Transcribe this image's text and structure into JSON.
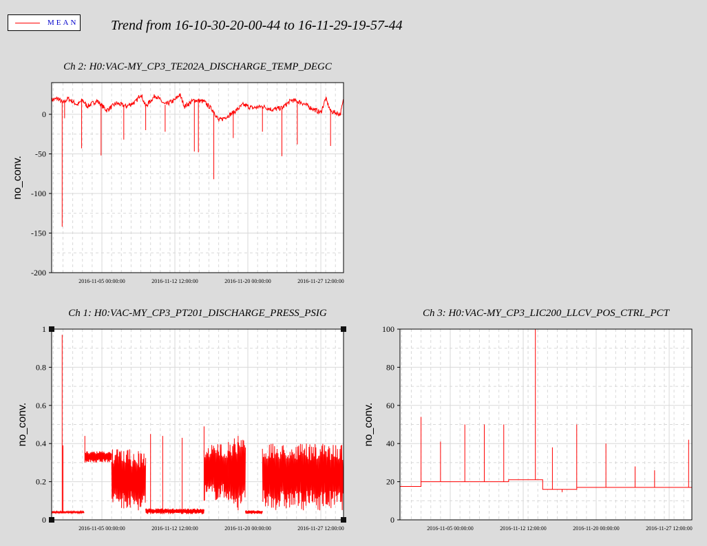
{
  "legend": {
    "label": "MEAN",
    "color": "#ff0000",
    "label_color": "#0000cc"
  },
  "title": "Trend from 16-10-30-20-00-44 to 16-11-29-19-57-44",
  "colors": {
    "background": "#dcdcdc",
    "plot_bg": "#ffffff",
    "grid": "#d8d8d8",
    "series": "#ff0000"
  },
  "chart_data": [
    {
      "id": "ch2",
      "type": "line",
      "title": "Ch 2: H0:VAC-MY_CP3_TE202A_DISCHARGE_TEMP_DEGC",
      "ylabel": "no_conv.",
      "xlabel": "",
      "xlim": [
        "2016-10-30 20:00:44",
        "2016-11-29 19:57:44"
      ],
      "ylim": [
        -200,
        40
      ],
      "yticks": [
        0,
        -50,
        -100,
        -150,
        -200
      ],
      "xticks": [
        "2016-11-05 00:00:00",
        "2016-11-12 12:00:00",
        "2016-11-20 00:00:00",
        "2016-11-27 12:00:00"
      ],
      "grid": true,
      "series": [
        {
          "name": "MEAN",
          "baseline": [
            [
              "2016-10-30 20:00",
              "18"
            ],
            [
              "2016-10-31 12:00",
              "20"
            ],
            [
              "2016-11-01 00:00",
              "14"
            ],
            [
              "2016-11-01 12:00",
              "20"
            ],
            [
              "2016-11-02 12:00",
              "12"
            ],
            [
              "2016-11-03 00:00",
              "18"
            ],
            [
              "2016-11-03 12:00",
              "10"
            ],
            [
              "2016-11-04 12:00",
              "17"
            ],
            [
              "2016-11-05 12:00",
              "5"
            ],
            [
              "2016-11-06 12:00",
              "14"
            ],
            [
              "2016-11-07 12:00",
              "10"
            ],
            [
              "2016-11-08 12:00",
              "16"
            ],
            [
              "2016-11-09 00:00",
              "26"
            ],
            [
              "2016-11-09 12:00",
              "10"
            ],
            [
              "2016-11-10 12:00",
              "24"
            ],
            [
              "2016-11-11 12:00",
              "12"
            ],
            [
              "2016-11-12 12:00",
              "18"
            ],
            [
              "2016-11-13 00:00",
              "25"
            ],
            [
              "2016-11-13 12:00",
              "10"
            ],
            [
              "2016-11-14 12:00",
              "18"
            ],
            [
              "2016-11-15 12:00",
              "16"
            ],
            [
              "2016-11-16 12:00",
              "4"
            ],
            [
              "2016-11-17 00:00",
              "-8"
            ],
            [
              "2016-11-17 12:00",
              "-5"
            ],
            [
              "2016-11-18 12:00",
              "2"
            ],
            [
              "2016-11-19 12:00",
              "12"
            ],
            [
              "2016-11-20 12:00",
              "8"
            ],
            [
              "2016-11-21 12:00",
              "10"
            ],
            [
              "2016-11-22 12:00",
              "6"
            ],
            [
              "2016-11-23 12:00",
              "8"
            ],
            [
              "2016-11-24 12:00",
              "18"
            ],
            [
              "2016-11-25 12:00",
              "15"
            ],
            [
              "2016-11-26 12:00",
              "8"
            ],
            [
              "2016-11-27 12:00",
              "2"
            ],
            [
              "2016-11-28 00:00",
              "20"
            ],
            [
              "2016-11-28 12:00",
              "4"
            ],
            [
              "2016-11-29 12:00",
              "0"
            ],
            [
              "2016-11-29 19:57",
              "18"
            ]
          ],
          "noise": 6,
          "spikes": [
            [
              "2016-10-31 22:00",
              "-142"
            ],
            [
              "2016-11-01 04:00",
              "-5"
            ],
            [
              "2016-11-02 22:00",
              "-43"
            ],
            [
              "2016-11-04 22:00",
              "-52"
            ],
            [
              "2016-11-07 06:00",
              "-32"
            ],
            [
              "2016-11-09 12:00",
              "-20"
            ],
            [
              "2016-11-11 12:00",
              "-22"
            ],
            [
              "2016-11-14 12:00",
              "-47"
            ],
            [
              "2016-11-14 22:00",
              "-48"
            ],
            [
              "2016-11-16 12:00",
              "-82"
            ],
            [
              "2016-11-18 12:00",
              "-30"
            ],
            [
              "2016-11-21 12:00",
              "-22"
            ],
            [
              "2016-11-23 12:00",
              "-53"
            ],
            [
              "2016-11-25 02:00",
              "-38"
            ],
            [
              "2016-11-28 12:00",
              "-40"
            ]
          ]
        }
      ]
    },
    {
      "id": "ch1",
      "type": "line",
      "title": "Ch 1: H0:VAC-MY_CP3_PT201_DISCHARGE_PRESS_PSIG",
      "ylabel": "no_conv.",
      "xlabel": "",
      "xlim": [
        "2016-10-30 20:00:44",
        "2016-11-29 19:57:44"
      ],
      "ylim": [
        0,
        1
      ],
      "yticks": [
        0,
        0.2,
        0.4,
        0.6,
        0.8,
        1
      ],
      "ytick_labels": [
        "0",
        "0.2",
        "0.4",
        "0.6",
        "0.8",
        "1"
      ],
      "xticks": [
        "2016-11-05 00:00:00",
        "2016-11-12 12:00:00",
        "2016-11-20 00:00:00",
        "2016-11-27 12:00:00"
      ],
      "grid": true,
      "series": [
        {
          "name": "MEAN",
          "segments": [
            {
              "from": "2016-10-30 20:00",
              "to": "2016-11-03 04:00",
              "low": 0.035,
              "high": 0.045
            },
            {
              "from": "2016-11-03 06:00",
              "to": "2016-11-06 00:00",
              "low": 0.3,
              "high": 0.36
            },
            {
              "from": "2016-11-06 00:00",
              "to": "2016-11-08 00:00",
              "low": 0.06,
              "high": 0.37
            },
            {
              "from": "2016-11-08 00:00",
              "to": "2016-11-09 12:00",
              "low": 0.05,
              "high": 0.35
            },
            {
              "from": "2016-11-09 12:00",
              "to": "2016-11-15 12:00",
              "low": 0.03,
              "high": 0.06
            },
            {
              "from": "2016-11-15 12:00",
              "to": "2016-11-18 00:00",
              "low": 0.1,
              "high": 0.4
            },
            {
              "from": "2016-11-18 00:00",
              "to": "2016-11-19 18:00",
              "low": 0.05,
              "high": 0.43
            },
            {
              "from": "2016-11-19 18:00",
              "to": "2016-11-21 12:00",
              "low": 0.03,
              "high": 0.05
            },
            {
              "from": "2016-11-21 12:00",
              "to": "2016-11-29 19:57",
              "low": 0.05,
              "high": 0.4
            }
          ],
          "spikes": [
            [
              "2016-10-31 22:00",
              "0.97"
            ],
            [
              "2016-11-01 00:00",
              "0.39"
            ],
            [
              "2016-11-03 06:00",
              "0.44"
            ],
            [
              "2016-11-07 06:00",
              "0.36"
            ],
            [
              "2016-11-08 18:00",
              "0.36"
            ],
            [
              "2016-11-10 00:00",
              "0.45"
            ],
            [
              "2016-11-11 06:00",
              "0.44"
            ],
            [
              "2016-11-13 06:00",
              "0.43"
            ],
            [
              "2016-11-15 12:00",
              "0.49"
            ],
            [
              "2016-11-19 00:00",
              "0.44"
            ]
          ]
        }
      ]
    },
    {
      "id": "ch3",
      "type": "line",
      "title": "Ch 3: H0:VAC-MY_CP3_LIC200_LLCV_POS_CTRL_PCT",
      "ylabel": "no_conv.",
      "xlabel": "",
      "xlim": [
        "2016-10-30 20:00:44",
        "2016-11-29 19:57:44"
      ],
      "ylim": [
        0,
        100
      ],
      "yticks": [
        0,
        20,
        40,
        60,
        80,
        100
      ],
      "xticks": [
        "2016-11-05 00:00:00",
        "2016-11-12 12:00:00",
        "2016-11-20 00:00:00",
        "2016-11-27 12:00:00"
      ],
      "grid": true,
      "series": [
        {
          "name": "MEAN",
          "steps": [
            [
              "2016-10-30 20:00",
              "17.5"
            ],
            [
              "2016-11-02 00:00",
              "20"
            ],
            [
              "2016-11-11 00:00",
              "21"
            ],
            [
              "2016-11-14 12:00",
              "16"
            ],
            [
              "2016-11-18 00:00",
              "17"
            ],
            [
              "2016-11-29 19:57",
              "17"
            ]
          ],
          "spikes": [
            [
              "2016-11-02 00:00",
              "54"
            ],
            [
              "2016-11-04 00:00",
              "41"
            ],
            [
              "2016-11-06 12:00",
              "50"
            ],
            [
              "2016-11-08 12:00",
              "50"
            ],
            [
              "2016-11-10 12:00",
              "50"
            ],
            [
              "2016-11-13 18:00",
              "100"
            ],
            [
              "2016-11-15 12:00",
              "38"
            ],
            [
              "2016-11-16 12:00",
              "14.5"
            ],
            [
              "2016-11-18 00:00",
              "50"
            ],
            [
              "2016-11-21 00:00",
              "40"
            ],
            [
              "2016-11-24 00:00",
              "28"
            ],
            [
              "2016-11-26 00:00",
              "26"
            ],
            [
              "2016-11-29 12:00",
              "42"
            ]
          ]
        }
      ]
    }
  ]
}
